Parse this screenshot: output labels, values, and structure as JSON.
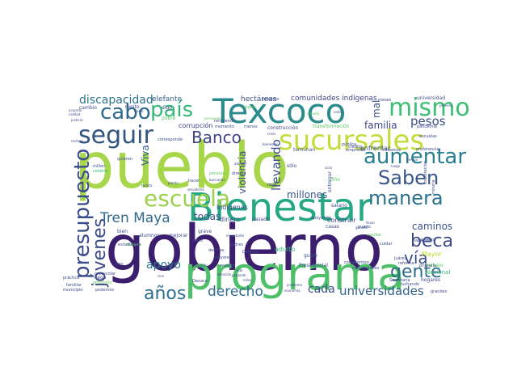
{
  "words": [
    {
      "text": "pueblo",
      "color": "#a7d64a"
    },
    {
      "text": "gobierno",
      "color": "#3b1f6e"
    },
    {
      "text": "programa",
      "color": "#4ec06a"
    },
    {
      "text": "Bienestar",
      "color": "#26a884"
    },
    {
      "text": "Texcoco",
      "color": "#2b8b8c"
    },
    {
      "text": "sucursales",
      "color": "#c4dc3a"
    },
    {
      "text": "seguir",
      "color": "#30557f"
    },
    {
      "text": "mismo",
      "color": "#3ec074"
    },
    {
      "text": "presupuesto",
      "color": "#3a4b8a"
    },
    {
      "text": "escuela",
      "color": "#9cd04e"
    },
    {
      "text": "aumentar",
      "color": "#27808e"
    },
    {
      "text": "Saben",
      "color": "#3a568a"
    },
    {
      "text": "manera",
      "color": "#2a728e"
    },
    {
      "text": "país",
      "color": "#38b87a"
    },
    {
      "text": "cabo",
      "color": "#2f6a8e"
    },
    {
      "text": "jóvenes",
      "color": "#3d4a89"
    },
    {
      "text": "beca",
      "color": "#3d4a89"
    },
    {
      "text": "gente",
      "color": "#2e6c8e"
    },
    {
      "text": "vía",
      "color": "#3b4d8a"
    },
    {
      "text": "años",
      "color": "#2d708e"
    },
    {
      "text": "Banco",
      "color": "#414487"
    },
    {
      "text": "Tren Maya",
      "color": "#31688e"
    },
    {
      "text": "derecho",
      "color": "#2f6b8e"
    },
    {
      "text": "universidades",
      "color": "#34618d"
    },
    {
      "text": "discapacidad",
      "color": "#2c728e"
    },
    {
      "text": "pesos",
      "color": "#3b4f8a"
    },
    {
      "text": "llevando",
      "color": "#3b4f8a"
    },
    {
      "text": "apoyo",
      "color": "#2b7c8e"
    },
    {
      "text": "cada",
      "color": "#3d4f8a"
    },
    {
      "text": "familia",
      "color": "#404588"
    },
    {
      "text": "millones",
      "color": "#39568c"
    },
    {
      "text": "violencia",
      "color": "#3a538b"
    },
    {
      "text": "todas",
      "color": "#3c4f8a"
    },
    {
      "text": "caminos",
      "color": "#3b528b"
    },
    {
      "text": "mal",
      "color": "#3b528b"
    },
    {
      "text": "Viva",
      "color": "#33638d"
    },
    {
      "text": "comunidades indígenas",
      "color": "#404688"
    },
    {
      "text": "hectáreas",
      "color": "#3b528b"
    },
    {
      "text": "elefante",
      "color": "#34618d"
    },
    {
      "text": "corrupción",
      "color": "#414287"
    },
    {
      "text": "dinero",
      "color": "#3b528b"
    },
    {
      "text": "indígenas",
      "color": "#3e4c8a"
    },
    {
      "text": "construir",
      "color": "#404688"
    },
    {
      "text": "entregar",
      "color": "#3e4c8a"
    },
    {
      "text": "adulto",
      "color": "#35b779"
    },
    {
      "text": "Mayor",
      "color": "#bddf26"
    },
    {
      "text": "Nacional",
      "color": "#35b779"
    },
    {
      "text": "trabajo",
      "color": "#5ec962"
    },
    {
      "text": "enfrentar",
      "color": "#3b528b"
    },
    {
      "text": "pasado",
      "color": "#404688"
    },
    {
      "text": "alumnos",
      "color": "#3e4c8a"
    },
    {
      "text": "mejorar",
      "color": "#3e4c8a"
    },
    {
      "text": "grave",
      "color": "#3e4c8a"
    },
    {
      "text": "salario",
      "color": "#3e4c8a"
    },
    {
      "text": "bien",
      "color": "#3e4c8a"
    },
    {
      "text": "pobre",
      "color": "#5ec962"
    },
    {
      "text": "digo",
      "color": "#404688"
    },
    {
      "text": "repito",
      "color": "#3e4c8a"
    },
    {
      "text": "cambio",
      "color": "#3e4c8a"
    },
    {
      "text": "universidad",
      "color": "#3e4c8a"
    },
    {
      "text": "meses",
      "color": "#404688"
    },
    {
      "text": "recibiendo",
      "color": "#404688"
    },
    {
      "text": "construcción",
      "color": "#414487"
    },
    {
      "text": "transformación",
      "color": "#5ec962"
    },
    {
      "text": "terminan",
      "color": "#3e4c8a"
    },
    {
      "text": "pública",
      "color": "#3e4c8a"
    },
    {
      "text": "empresas",
      "color": "#3e4c8a"
    },
    {
      "text": "hogares",
      "color": "#3e4c8a"
    },
    {
      "text": "Secretaría",
      "color": "#3e4c8a"
    },
    {
      "text": "luchando",
      "color": "#3e4c8a"
    },
    {
      "text": "quieren",
      "color": "#3e4c8a"
    },
    {
      "text": "millón",
      "color": "#3e4c8a"
    },
    {
      "text": "celebro",
      "color": "#35b779"
    },
    {
      "text": "siempre",
      "color": "#5ec962"
    },
    {
      "text": "pensión",
      "color": "#5ec962"
    },
    {
      "text": "gusto",
      "color": "#3e4c8a"
    },
    {
      "text": "Presidencial",
      "color": "#3e4c8a"
    },
    {
      "text": "municipio",
      "color": "#3e4c8a"
    },
    {
      "text": "podemos",
      "color": "#3e4c8a"
    },
    {
      "text": "familiar",
      "color": "#3e4c8a"
    },
    {
      "text": "llega",
      "color": "#3e4c8a"
    },
    {
      "text": "primaria",
      "color": "#3e4c8a"
    },
    {
      "text": "grandes",
      "color": "#3e4c8a"
    },
    {
      "text": "mayores",
      "color": "#3e4c8a"
    },
    {
      "text": "Oaxaca",
      "color": "#3e4c8a"
    },
    {
      "text": "avance",
      "color": "#3e4c8a"
    },
    {
      "text": "decirles",
      "color": "#3e4c8a"
    },
    {
      "text": "Juárez",
      "color": "#3e4c8a"
    },
    {
      "text": "probar",
      "color": "#3e4c8a"
    },
    {
      "text": "mes",
      "color": "#3e4c8a"
    },
    {
      "text": "cuidar",
      "color": "#3e4c8a"
    },
    {
      "text": "lograr",
      "color": "#5ec962"
    },
    {
      "text": "menos",
      "color": "#3e4c8a"
    },
    {
      "text": "momento",
      "color": "#3e4c8a"
    },
    {
      "text": "directa",
      "color": "#3e4c8a"
    },
    {
      "text": "hacer",
      "color": "#3e4c8a"
    },
    {
      "text": "sólo",
      "color": "#3e4c8a"
    },
    {
      "text": "niño",
      "color": "#5ec962"
    },
    {
      "text": "crédito",
      "color": "#3e4c8a"
    },
    {
      "text": "llevamos",
      "color": "#3e4c8a"
    },
    {
      "text": "preferencia",
      "color": "#3e4c8a"
    },
    {
      "text": "reforma",
      "color": "#3e4c8a"
    },
    {
      "text": "escuelas",
      "color": "#3e4c8a"
    },
    {
      "text": "sirve",
      "color": "#3e4c8a"
    },
    {
      "text": "puedo",
      "color": "#3e4c8a"
    },
    {
      "text": "próximo",
      "color": "#3e4c8a"
    },
    {
      "text": "Defensa",
      "color": "#3e4c8a"
    },
    {
      "text": "haciendo",
      "color": "#3e4c8a"
    },
    {
      "text": "ayudar",
      "color": "#5ec962"
    },
    {
      "text": "casas",
      "color": "#3e4c8a"
    },
    {
      "text": "padres",
      "color": "#3e4c8a"
    },
    {
      "text": "estudiando",
      "color": "#3e4c8a"
    },
    {
      "text": "preescolar",
      "color": "#3e4c8a"
    },
    {
      "text": "práctica",
      "color": "#3e4c8a"
    },
    {
      "text": "propósito",
      "color": "#5ec962"
    },
    {
      "text": "apoyando",
      "color": "#3e4c8a"
    },
    {
      "text": "compromiso",
      "color": "#3e4c8a"
    },
    {
      "text": "comunidades",
      "color": "#3e4c8a"
    },
    {
      "text": "calidad",
      "color": "#3e4c8a"
    },
    {
      "text": "justicia",
      "color": "#3e4c8a"
    },
    {
      "text": "acuerdo",
      "color": "#3e4c8a"
    },
    {
      "text": "reciben",
      "color": "#3e4c8a"
    },
    {
      "text": "corresponde",
      "color": "#3e4c8a"
    },
    {
      "text": "tarjeta",
      "color": "#3e4c8a"
    },
    {
      "text": "pandemia",
      "color": "#3e4c8a"
    },
    {
      "text": "planta",
      "color": "#3e4c8a"
    },
    {
      "text": "bancarias",
      "color": "#3e4c8a"
    },
    {
      "text": "bienestar",
      "color": "#3e4c8a"
    },
    {
      "text": "cierto",
      "color": "#3e4c8a"
    },
    {
      "text": "pensiones",
      "color": "#5ec962"
    },
    {
      "text": "votos",
      "color": "#3e4c8a"
    },
    {
      "text": "armada",
      "color": "#5ec962"
    },
    {
      "text": "primero",
      "color": "#3e4c8a"
    },
    {
      "text": "pagando",
      "color": "#3e4c8a"
    },
    {
      "text": "economía",
      "color": "#3e4c8a"
    },
    {
      "text": "problema",
      "color": "#3e4c8a"
    },
    {
      "text": "servidores",
      "color": "#3e4c8a"
    },
    {
      "text": "atender",
      "color": "#3e4c8a"
    },
    {
      "text": "ciclo",
      "color": "#3e4c8a"
    },
    {
      "text": "crisis",
      "color": "#3e4c8a"
    },
    {
      "text": "llevar",
      "color": "#3e4c8a"
    },
    {
      "text": "importante",
      "color": "#3e4c8a"
    },
    {
      "text": "vamos",
      "color": "#3e4c8a"
    },
    {
      "text": "luego",
      "color": "#3e4c8a"
    },
    {
      "text": "tiempo",
      "color": "#3e4c8a"
    },
    {
      "text": "explotación",
      "color": "#3e4c8a"
    },
    {
      "text": "minera",
      "color": "#3e4c8a"
    },
    {
      "text": "permitir",
      "color": "#3e4c8a"
    },
    {
      "text": "cien",
      "color": "#3e4c8a"
    },
    {
      "text": "atención",
      "color": "#3e4c8a"
    },
    {
      "text": "vida",
      "color": "#3e4c8a"
    },
    {
      "text": "miles",
      "color": "#3e4c8a"
    },
    {
      "text": "ganado",
      "color": "#3e4c8a"
    }
  ]
}
